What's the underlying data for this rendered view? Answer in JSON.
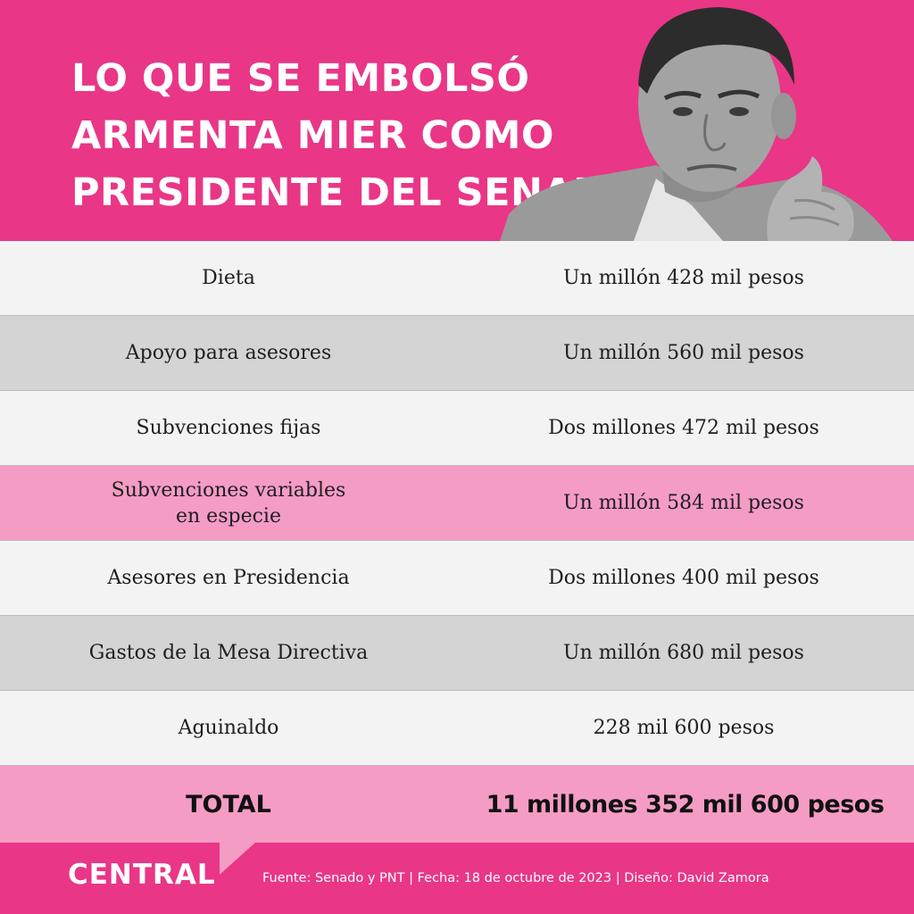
{
  "header": {
    "title_lines": [
      "LO QUE SE EMBOLSÓ",
      "ARMENTA MIER COMO",
      "PRESIDENTE DEL SENADO"
    ]
  },
  "table": {
    "rows": [
      {
        "concept": "Dieta",
        "amount": "Un millón 428 mil pesos",
        "tone": "light"
      },
      {
        "concept": "Apoyo para asesores",
        "amount": "Un millón 560 mil pesos",
        "tone": "gray"
      },
      {
        "concept": "Subvenciones fijas",
        "amount": "Dos millones 472 mil pesos",
        "tone": "light"
      },
      {
        "concept": "Subvenciones variables en especie",
        "amount": "Un millón 584 mil pesos",
        "tone": "pink"
      },
      {
        "concept": "Asesores en Presidencia",
        "amount": "Dos millones 400 mil pesos",
        "tone": "light"
      },
      {
        "concept": "Gastos de la Mesa Directiva",
        "amount": "Un millón 680 mil pesos",
        "tone": "gray"
      },
      {
        "concept": "Aguinaldo",
        "amount": "228 mil 600 pesos",
        "tone": "light"
      }
    ],
    "total": {
      "concept": "TOTAL",
      "amount": "11 millones 352 mil 600 pesos"
    }
  },
  "footer": {
    "logo": "CENTRAL",
    "credits": "Fuente: Senado y PNT | Fecha: 18 de octubre de 2023 | Diseño: David Zamora"
  },
  "colors": {
    "brand_pink": "#e93686",
    "row_pink": "#f59cc5",
    "row_gray": "#d4d4d4",
    "row_light": "#f3f3f3"
  },
  "icons": {
    "portrait": "man-portrait-photo",
    "notch": "speech-bubble-notch"
  }
}
